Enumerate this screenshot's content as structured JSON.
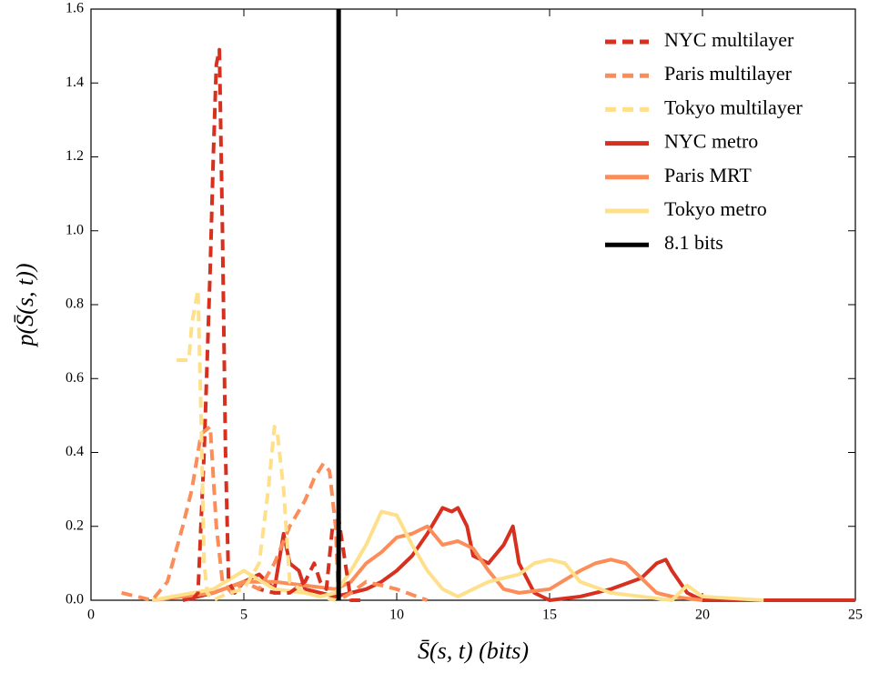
{
  "chart_data": {
    "type": "line",
    "xlabel": "S̄(s, t) (bits)",
    "ylabel": "p(S̄(s, t))",
    "xlim": [
      0,
      25
    ],
    "xticks": [
      0,
      5,
      10,
      15,
      20,
      25
    ],
    "ylim": [
      0,
      1.6
    ],
    "yticks": [
      {
        "value": 0,
        "label": "0.0"
      },
      0.2,
      0.4,
      0.6,
      0.8,
      {
        "value": 1,
        "label": "1.0"
      },
      1.2,
      1.4,
      1.6
    ],
    "legend": "upper right",
    "series": [
      {
        "name": "NYC metro",
        "color": "#d7301f",
        "dashed": false,
        "x": [
          3,
          4,
          5,
          5.5,
          6,
          6.3,
          6.5,
          6.8,
          7,
          7.5,
          8,
          8.5,
          9,
          9.5,
          10,
          10.5,
          11,
          11.5,
          11.8,
          12,
          12.3,
          12.5,
          13,
          13.5,
          13.8,
          14,
          14.5,
          15,
          16,
          17,
          18,
          18.5,
          18.8,
          19,
          19.5,
          20,
          22,
          25
        ],
        "values": [
          0,
          0.02,
          0.05,
          0.07,
          0.03,
          0.18,
          0.1,
          0.08,
          0.03,
          0.02,
          0.01,
          0.02,
          0.03,
          0.05,
          0.08,
          0.12,
          0.18,
          0.25,
          0.24,
          0.25,
          0.2,
          0.12,
          0.1,
          0.15,
          0.2,
          0.1,
          0.02,
          0,
          0.01,
          0.03,
          0.06,
          0.1,
          0.11,
          0.08,
          0.02,
          0,
          0,
          0
        ]
      },
      {
        "name": "Paris MRT",
        "color": "#fc8d59",
        "dashed": false,
        "x": [
          2,
          4,
          5,
          6,
          7,
          8,
          8.5,
          9,
          9.5,
          10,
          10.5,
          11,
          11.5,
          12,
          12.5,
          13,
          13.5,
          14,
          15,
          16,
          16.5,
          17,
          17.5,
          18,
          18.5,
          19,
          20
        ],
        "values": [
          0,
          0.02,
          0.05,
          0.05,
          0.04,
          0.03,
          0.05,
          0.1,
          0.13,
          0.17,
          0.18,
          0.2,
          0.15,
          0.16,
          0.14,
          0.08,
          0.03,
          0.02,
          0.03,
          0.08,
          0.1,
          0.11,
          0.1,
          0.06,
          0.02,
          0.01,
          0
        ]
      },
      {
        "name": "Tokyo metro",
        "color": "#fee08b",
        "dashed": false,
        "x": [
          2,
          4,
          5,
          6,
          7,
          7.5,
          8,
          8.5,
          9,
          9.5,
          10,
          10.5,
          11,
          11.5,
          12,
          12.5,
          13,
          14,
          14.5,
          15,
          15.5,
          16,
          17,
          18,
          19,
          19.5,
          20,
          22
        ],
        "values": [
          0,
          0.03,
          0.08,
          0.03,
          0.02,
          0.01,
          0.02,
          0.08,
          0.15,
          0.24,
          0.23,
          0.15,
          0.08,
          0.03,
          0.01,
          0.03,
          0.05,
          0.07,
          0.1,
          0.11,
          0.1,
          0.05,
          0.02,
          0.01,
          0,
          0.04,
          0.01,
          0
        ]
      },
      {
        "name": "NYC multilayer",
        "color": "#d7301f",
        "dashed": true,
        "x": [
          3.3,
          3.5,
          3.7,
          3.9,
          4.0,
          4.1,
          4.2,
          4.3,
          4.4,
          4.5,
          4.7,
          5.0,
          5.5,
          6.0,
          6.5,
          7.0,
          7.3,
          7.5,
          7.7,
          7.9,
          8.1,
          8.5,
          9.0
        ],
        "values": [
          0,
          0.02,
          0.4,
          0.9,
          1.2,
          1.45,
          1.49,
          1.0,
          0.4,
          0.05,
          0.02,
          0.05,
          0.03,
          0.02,
          0.02,
          0.05,
          0.1,
          0.05,
          0.03,
          0.2,
          0.22,
          0,
          0
        ]
      },
      {
        "name": "Paris multilayer",
        "color": "#fc8d59",
        "dashed": true,
        "x": [
          1.0,
          2.0,
          2.5,
          3.0,
          3.3,
          3.6,
          3.9,
          4.1,
          4.3,
          4.6,
          5.0,
          5.5,
          6.0,
          6.5,
          7.0,
          7.3,
          7.6,
          7.8,
          8.0,
          8.1,
          8.5,
          9.0,
          10,
          11
        ],
        "values": [
          0.02,
          0,
          0.05,
          0.2,
          0.3,
          0.45,
          0.47,
          0.2,
          0.05,
          0.02,
          0.05,
          0.03,
          0.1,
          0.2,
          0.27,
          0.33,
          0.37,
          0.35,
          0.2,
          0,
          0.02,
          0.05,
          0.03,
          0
        ]
      },
      {
        "name": "Tokyo multilayer",
        "color": "#fee08b",
        "dashed": true,
        "x": [
          2.8,
          3.2,
          3.3,
          3.5,
          3.6,
          3.7,
          3.8,
          4.0,
          4.5,
          5.0,
          5.5,
          5.8,
          6.0,
          6.1,
          6.3,
          6.5,
          7.0,
          7.5,
          8.0
        ],
        "values": [
          0.65,
          0.65,
          0.75,
          0.84,
          0.5,
          0.1,
          0.02,
          0,
          0.02,
          0.03,
          0.1,
          0.3,
          0.47,
          0.45,
          0.3,
          0.05,
          0.02,
          0.01,
          0
        ]
      }
    ],
    "vlines": [
      {
        "name": "8.1 bits",
        "x": 8.1,
        "color": "#000000"
      }
    ],
    "legend_order": [
      3,
      4,
      5,
      0,
      1,
      2
    ]
  }
}
